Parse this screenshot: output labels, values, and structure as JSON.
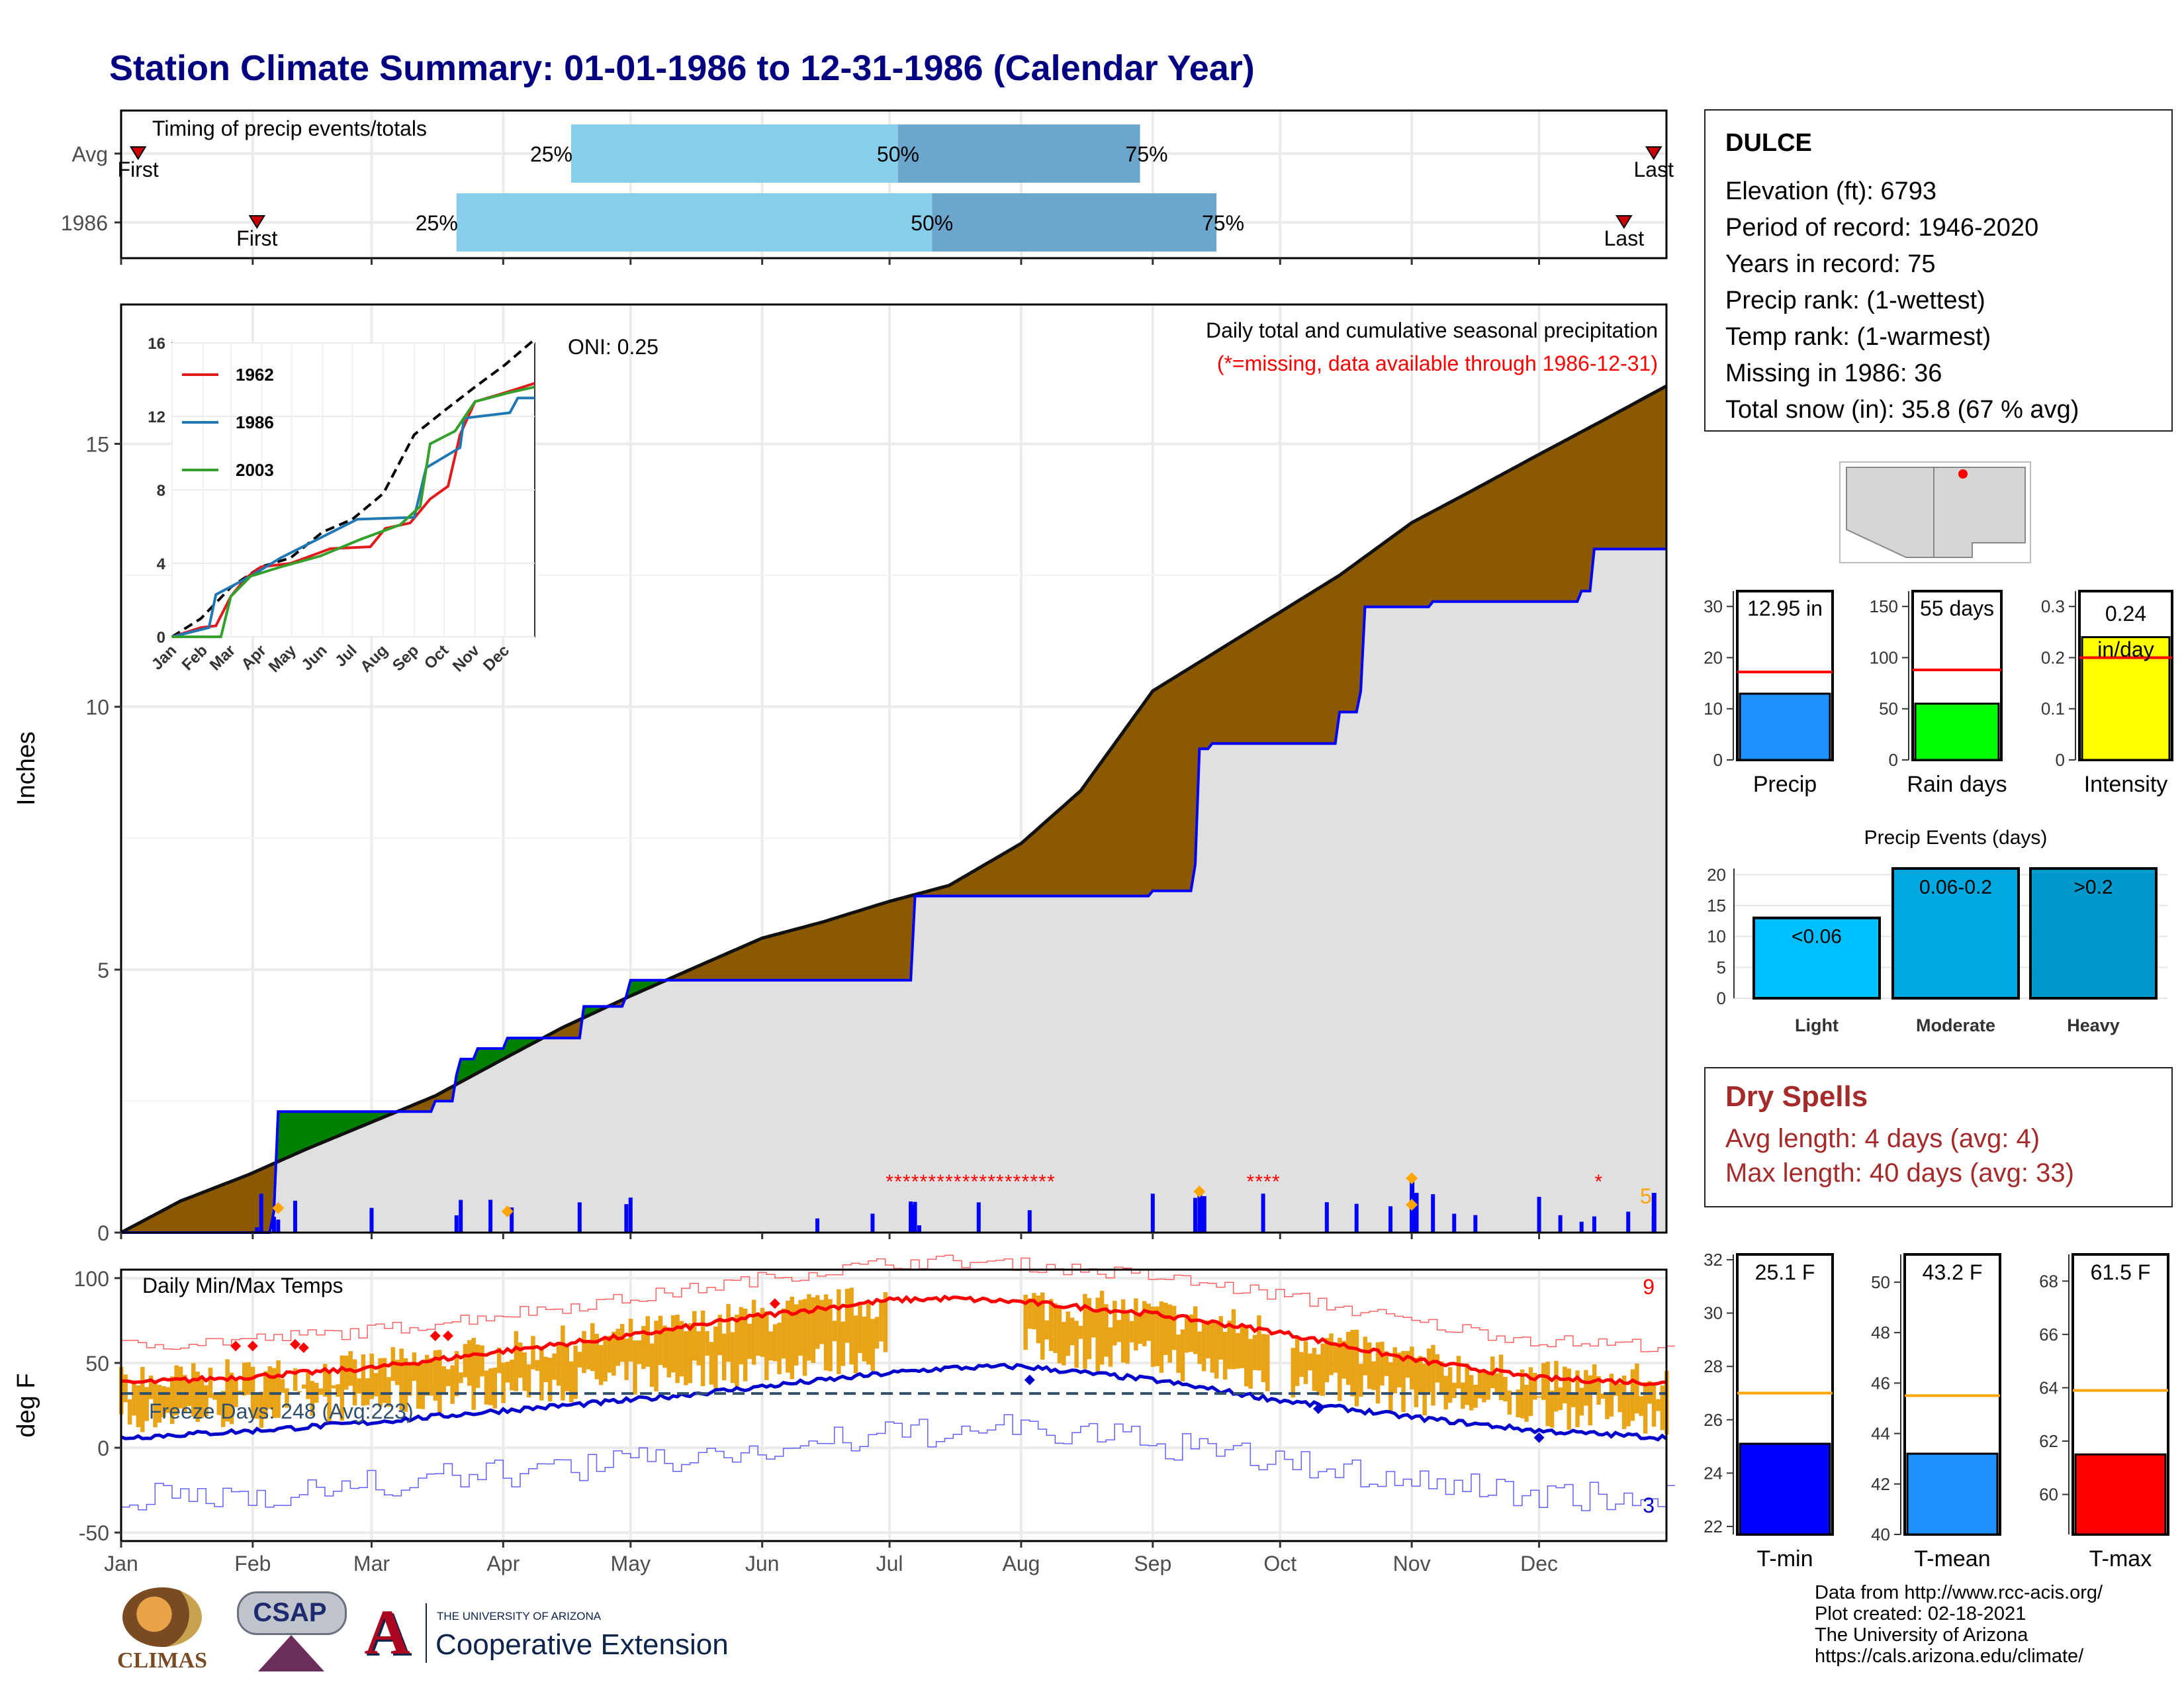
{
  "title": "Station Climate Summary: 01-01-1986 to 12-31-1986 (Calendar Year)",
  "station": {
    "name": "DULCE",
    "lines": [
      "Elevation (ft): 6793",
      "Period of record: 1946-2020",
      "Years in record: 75",
      "Precip rank:  (1-wettest)",
      "Temp rank:  (1-warmest)",
      "Missing in 1986: 36",
      "Total snow (in): 35.8 (67 % avg)"
    ]
  },
  "months": [
    "Jan",
    "Feb",
    "Mar",
    "Apr",
    "May",
    "Jun",
    "Jul",
    "Aug",
    "Sep",
    "Oct",
    "Nov",
    "Dec"
  ],
  "timing": {
    "label": "Timing of precip events/totals",
    "rows": [
      {
        "name": "Avg",
        "first_doy": 5,
        "p25_doy": 107,
        "p50_doy": 184,
        "p75_doy": 241,
        "last_doy": 362
      },
      {
        "name": "1986",
        "first_doy": 33,
        "p25_doy": 80,
        "p50_doy": 192,
        "p75_doy": 259,
        "last_doy": 355
      }
    ],
    "p25_label": "25%",
    "p50_label": "50%",
    "p75_label": "75%",
    "first_label": "First",
    "last_label": "Last"
  },
  "precip": {
    "title": "Daily total and cumulative seasonal precipitation",
    "note": "(*=missing, data available through 1986-12-31)",
    "ylabel": "Inches",
    "oni": "ONI: 0.25",
    "max_label": "5"
  },
  "inset": {
    "legend": [
      "1962",
      "1986",
      "2003"
    ],
    "legend_colors": [
      "#e31a1c",
      "#1f78b4",
      "#33a02c"
    ],
    "yticks": [
      "0",
      "4",
      "8",
      "12",
      "16"
    ]
  },
  "temps": {
    "label": "Daily Min/Max Temps",
    "freeze": "Freeze Days: 248 (Avg:223)",
    "ylabel": "deg F",
    "count_hot": "9",
    "count_cold": "3"
  },
  "chart_data": [
    {
      "type": "area",
      "name_ref": "cumulative_precip",
      "ylim": [
        0,
        16
      ],
      "yticks": [
        0,
        5,
        10,
        15
      ],
      "avg_cumulative": {
        "doy": [
          1,
          15,
          31,
          45,
          60,
          75,
          91,
          105,
          121,
          135,
          152,
          166,
          182,
          196,
          213,
          227,
          244,
          258,
          274,
          288,
          305,
          319,
          335,
          349,
          365
        ],
        "in": [
          0.0,
          0.6,
          1.1,
          1.6,
          2.1,
          2.6,
          3.3,
          3.9,
          4.5,
          5.0,
          5.6,
          5.9,
          6.3,
          6.6,
          7.4,
          8.4,
          10.3,
          11.0,
          11.8,
          12.5,
          13.5,
          14.1,
          14.8,
          15.4,
          16.1
        ]
      },
      "obs_cumulative": {
        "doy": [
          1,
          33,
          37,
          38,
          75,
          80,
          81,
          85,
          91,
          92,
          109,
          110,
          120,
          121,
          187,
          188,
          244,
          254,
          255,
          258,
          288,
          293,
          294,
          310,
          335,
          345,
          348,
          365
        ],
        "in": [
          0.0,
          0.0,
          0.4,
          2.3,
          2.5,
          3.0,
          3.3,
          3.5,
          3.5,
          3.7,
          3.7,
          4.3,
          4.5,
          4.8,
          4.8,
          6.4,
          6.5,
          7.0,
          9.2,
          9.3,
          9.9,
          10.3,
          11.9,
          12.0,
          12.0,
          12.2,
          13.0,
          13.0
        ]
      }
    },
    {
      "type": "bar",
      "name_ref": "bar_summary",
      "Precip": {
        "value": 12.95,
        "avg": 17.2,
        "label": "12.95 in",
        "ylim": [
          0,
          33
        ]
      },
      "Rain days": {
        "value": 55,
        "avg": 88,
        "label": "55 days",
        "ylim": [
          0,
          165
        ]
      },
      "Intensity": {
        "value": 0.24,
        "avg": 0.2,
        "label": "0.24 in/day",
        "ylim": [
          0,
          0.33
        ]
      }
    },
    {
      "type": "bar",
      "name_ref": "precip_events",
      "title": "Precip Events (days)",
      "categories": [
        "Light",
        "Moderate",
        "Heavy"
      ],
      "labels": [
        "<0.06",
        "0.06-0.2",
        ">0.2"
      ],
      "values": [
        13,
        21,
        21
      ],
      "ylim": [
        0,
        21
      ],
      "yticks": [
        0,
        5,
        10,
        15,
        20
      ]
    },
    {
      "type": "bar",
      "name_ref": "temp_summary",
      "T-min": {
        "value": 25.1,
        "avg": 27.0,
        "label": "25.1 F",
        "ylim": [
          21.7,
          32.2
        ]
      },
      "T-mean": {
        "value": 43.2,
        "avg": 45.5,
        "label": "43.2 F",
        "ylim": [
          40,
          51.1
        ]
      },
      "T-max": {
        "value": 61.5,
        "avg": 63.9,
        "label": "61.5 F",
        "ylim": [
          58.5,
          69
        ]
      }
    },
    {
      "type": "line",
      "name_ref": "daily_temps",
      "ylim": [
        -55,
        105
      ],
      "yticks": [
        -50,
        0,
        50,
        100
      ],
      "freeze_line": 32,
      "avg_max": {
        "doy": [
          1,
          32,
          60,
          91,
          121,
          152,
          182,
          196,
          213,
          244,
          274,
          305,
          335,
          365
        ],
        "f": [
          38,
          42,
          47,
          57,
          66,
          78,
          87,
          88,
          86,
          79,
          68,
          52,
          41,
          38
        ]
      },
      "avg_min": {
        "doy": [
          1,
          32,
          60,
          91,
          121,
          152,
          182,
          196,
          213,
          244,
          274,
          305,
          335,
          365
        ],
        "f": [
          6,
          10,
          15,
          22,
          28,
          36,
          44,
          47,
          48,
          40,
          28,
          18,
          10,
          6
        ]
      }
    }
  ],
  "dry_spells": {
    "title": "Dry Spells",
    "avg": "Avg length: 4 days (avg: 4)",
    "max": "Max length: 40 days (avg: 33)"
  },
  "credits": [
    "Data from http://www.rcc-acis.org/",
    "Plot created: 02-18-2021",
    "The University of Arizona",
    "https://cals.arizona.edu/climate/"
  ],
  "logos": {
    "climas": "CLIMAS",
    "csap": "CSAP",
    "ua_small": "THE UNIVERSITY OF ARIZONA",
    "ua_big": "Cooperative Extension"
  },
  "colors": {
    "title": "#000080",
    "brown": "#8B5A00",
    "green": "#008000",
    "grey": "#e0e0e0",
    "blue": "#0000ff",
    "light_blue": "#87ceeb",
    "mid_blue": "#6ca6cd",
    "orange": "#e8a317",
    "dry_red": "#a52a2a"
  }
}
